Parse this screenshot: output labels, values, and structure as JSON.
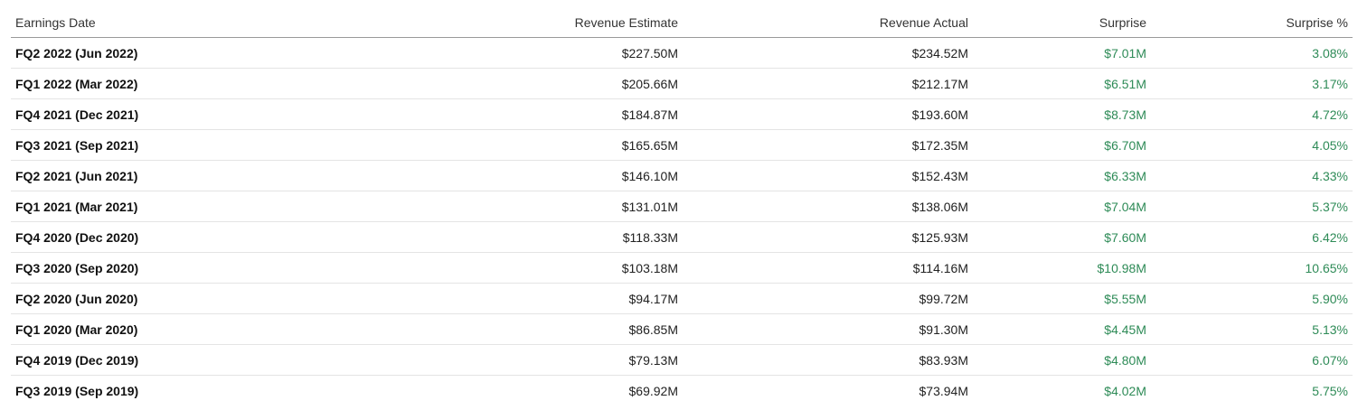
{
  "table": {
    "headers": {
      "date": "Earnings Date",
      "estimate": "Revenue Estimate",
      "actual": "Revenue Actual",
      "surprise": "Surprise",
      "surprise_pct": "Surprise %"
    },
    "rows": [
      {
        "date": "FQ2 2022 (Jun 2022)",
        "estimate": "$227.50M",
        "actual": "$234.52M",
        "surprise": "$7.01M",
        "surprise_pct": "3.08%"
      },
      {
        "date": "FQ1 2022 (Mar 2022)",
        "estimate": "$205.66M",
        "actual": "$212.17M",
        "surprise": "$6.51M",
        "surprise_pct": "3.17%"
      },
      {
        "date": "FQ4 2021 (Dec 2021)",
        "estimate": "$184.87M",
        "actual": "$193.60M",
        "surprise": "$8.73M",
        "surprise_pct": "4.72%"
      },
      {
        "date": "FQ3 2021 (Sep 2021)",
        "estimate": "$165.65M",
        "actual": "$172.35M",
        "surprise": "$6.70M",
        "surprise_pct": "4.05%"
      },
      {
        "date": "FQ2 2021 (Jun 2021)",
        "estimate": "$146.10M",
        "actual": "$152.43M",
        "surprise": "$6.33M",
        "surprise_pct": "4.33%"
      },
      {
        "date": "FQ1 2021 (Mar 2021)",
        "estimate": "$131.01M",
        "actual": "$138.06M",
        "surprise": "$7.04M",
        "surprise_pct": "5.37%"
      },
      {
        "date": "FQ4 2020 (Dec 2020)",
        "estimate": "$118.33M",
        "actual": "$125.93M",
        "surprise": "$7.60M",
        "surprise_pct": "6.42%"
      },
      {
        "date": "FQ3 2020 (Sep 2020)",
        "estimate": "$103.18M",
        "actual": "$114.16M",
        "surprise": "$10.98M",
        "surprise_pct": "10.65%"
      },
      {
        "date": "FQ2 2020 (Jun 2020)",
        "estimate": "$94.17M",
        "actual": "$99.72M",
        "surprise": "$5.55M",
        "surprise_pct": "5.90%"
      },
      {
        "date": "FQ1 2020 (Mar 2020)",
        "estimate": "$86.85M",
        "actual": "$91.30M",
        "surprise": "$4.45M",
        "surprise_pct": "5.13%"
      },
      {
        "date": "FQ4 2019 (Dec 2019)",
        "estimate": "$79.13M",
        "actual": "$83.93M",
        "surprise": "$4.80M",
        "surprise_pct": "6.07%"
      },
      {
        "date": "FQ3 2019 (Sep 2019)",
        "estimate": "$69.92M",
        "actual": "$73.94M",
        "surprise": "$4.02M",
        "surprise_pct": "5.75%"
      }
    ]
  },
  "colors": {
    "positive": "#2e8b57",
    "header_border": "#9a9a9a",
    "row_border": "#e4e4e4"
  }
}
